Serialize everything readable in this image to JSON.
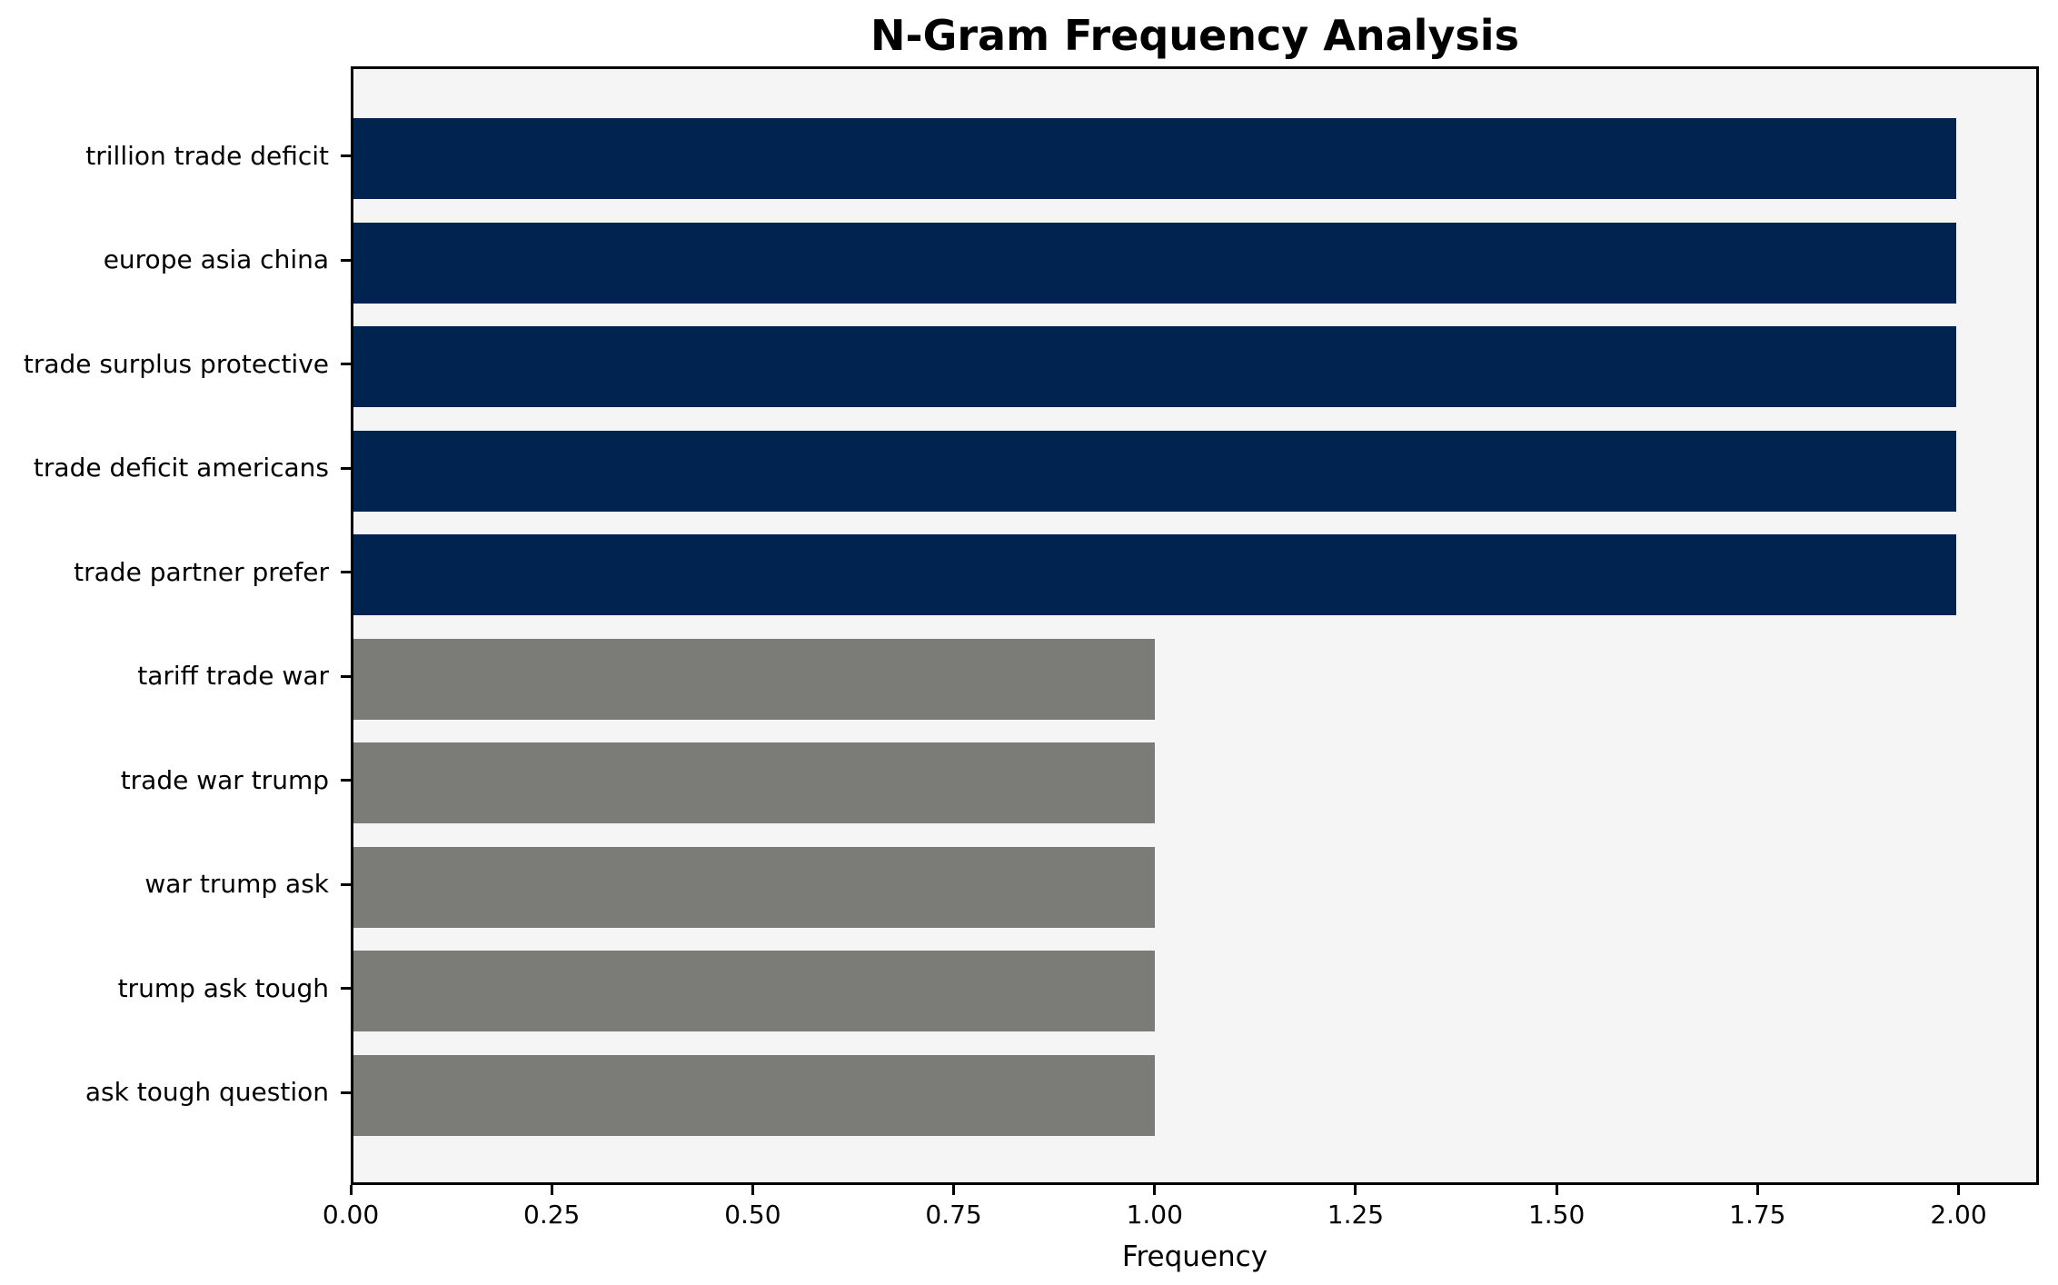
{
  "figure": {
    "background": "#ffffff"
  },
  "chart_data": {
    "type": "bar",
    "orientation": "horizontal",
    "title": "N-Gram Frequency Analysis",
    "xlabel": "Frequency",
    "ylabel": "",
    "categories": [
      "trillion trade deficit",
      "europe asia china",
      "trade surplus protective",
      "trade deficit americans",
      "trade partner prefer",
      "tariff trade war",
      "trade war trump",
      "war trump ask",
      "trump ask tough",
      "ask tough question"
    ],
    "values": [
      2,
      2,
      2,
      2,
      2,
      1,
      1,
      1,
      1,
      1
    ],
    "bar_colors": [
      "#002350",
      "#002350",
      "#002350",
      "#002350",
      "#002350",
      "#7b7b78",
      "#7b7b78",
      "#7b7b78",
      "#7b7b78",
      "#7b7b78"
    ],
    "xlim": [
      0,
      2.1
    ],
    "xticks": [
      0.0,
      0.25,
      0.5,
      0.75,
      1.0,
      1.25,
      1.5,
      1.75,
      2.0
    ],
    "xtick_labels": [
      "0.00",
      "0.25",
      "0.50",
      "0.75",
      "1.00",
      "1.25",
      "1.50",
      "1.75",
      "2.00"
    ],
    "grid": false,
    "legend_position": "none",
    "colors": {
      "high_frequency_bar": "#002350",
      "low_frequency_bar": "#7b7b78",
      "plot_background": "#f5f5f5",
      "figure_background": "#ffffff",
      "axis": "#000000"
    }
  }
}
